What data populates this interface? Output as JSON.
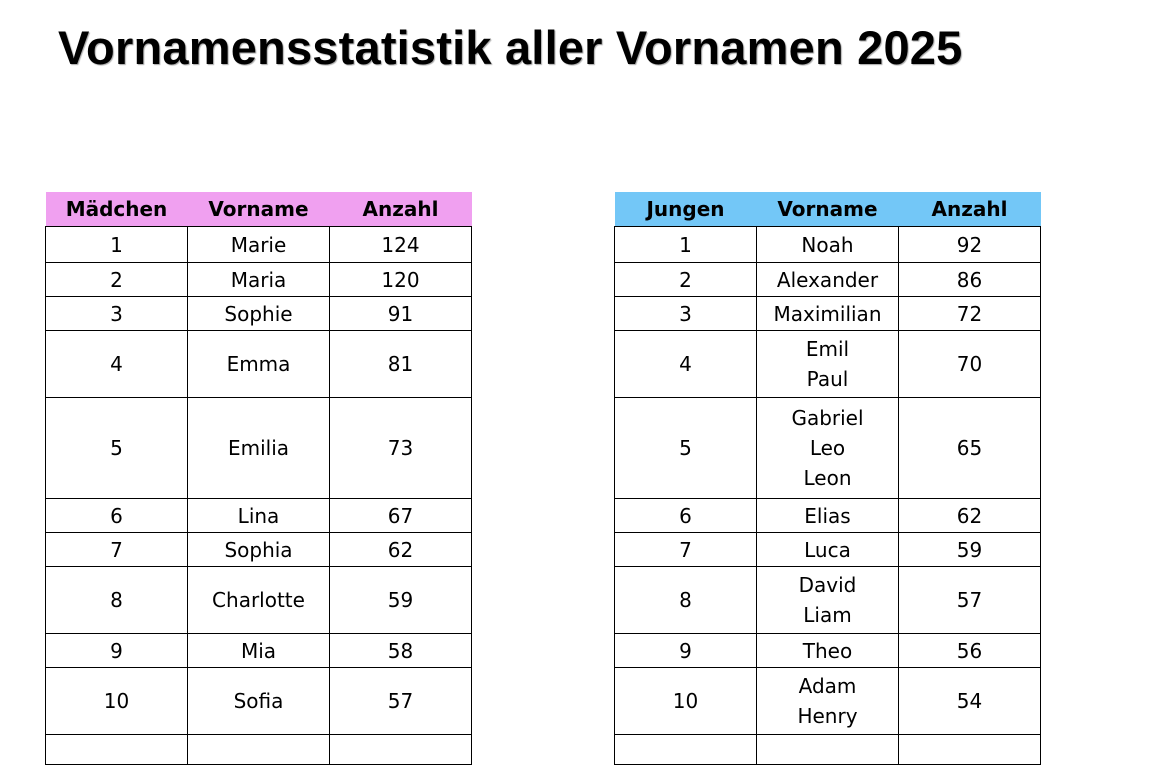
{
  "title": "Vornamensstatistik aller Vornamen 2025",
  "colors": {
    "girls_header": "#f0a0f0",
    "boys_header": "#73c7f7"
  },
  "girls": {
    "headers": [
      "Mädchen",
      "Vorname",
      "Anzahl"
    ],
    "rows": [
      {
        "rank": "1",
        "names": [
          "Marie"
        ],
        "count": "124"
      },
      {
        "rank": "2",
        "names": [
          "Maria"
        ],
        "count": "120"
      },
      {
        "rank": "3",
        "names": [
          "Sophie"
        ],
        "count": "91"
      },
      {
        "rank": "4",
        "names": [
          "Emma"
        ],
        "count": "81"
      },
      {
        "rank": "5",
        "names": [
          "Emilia"
        ],
        "count": "73"
      },
      {
        "rank": "6",
        "names": [
          "Lina"
        ],
        "count": "67"
      },
      {
        "rank": "7",
        "names": [
          "Sophia"
        ],
        "count": "62"
      },
      {
        "rank": "8",
        "names": [
          "Charlotte"
        ],
        "count": "59"
      },
      {
        "rank": "9",
        "names": [
          "Mia"
        ],
        "count": "58"
      },
      {
        "rank": "10",
        "names": [
          "Sofia"
        ],
        "count": "57"
      }
    ]
  },
  "boys": {
    "headers": [
      "Jungen",
      "Vorname",
      "Anzahl"
    ],
    "rows": [
      {
        "rank": "1",
        "names": [
          "Noah"
        ],
        "count": "92"
      },
      {
        "rank": "2",
        "names": [
          "Alexander"
        ],
        "count": "86"
      },
      {
        "rank": "3",
        "names": [
          "Maximilian"
        ],
        "count": "72"
      },
      {
        "rank": "4",
        "names": [
          "Emil",
          "Paul"
        ],
        "count": "70"
      },
      {
        "rank": "5",
        "names": [
          "Gabriel",
          "Leo",
          "Leon"
        ],
        "count": "65"
      },
      {
        "rank": "6",
        "names": [
          "Elias"
        ],
        "count": "62"
      },
      {
        "rank": "7",
        "names": [
          "Luca"
        ],
        "count": "59"
      },
      {
        "rank": "8",
        "names": [
          "David",
          "Liam"
        ],
        "count": "57"
      },
      {
        "rank": "9",
        "names": [
          "Theo"
        ],
        "count": "56"
      },
      {
        "rank": "10",
        "names": [
          "Adam",
          "Henry"
        ],
        "count": "54"
      }
    ]
  }
}
